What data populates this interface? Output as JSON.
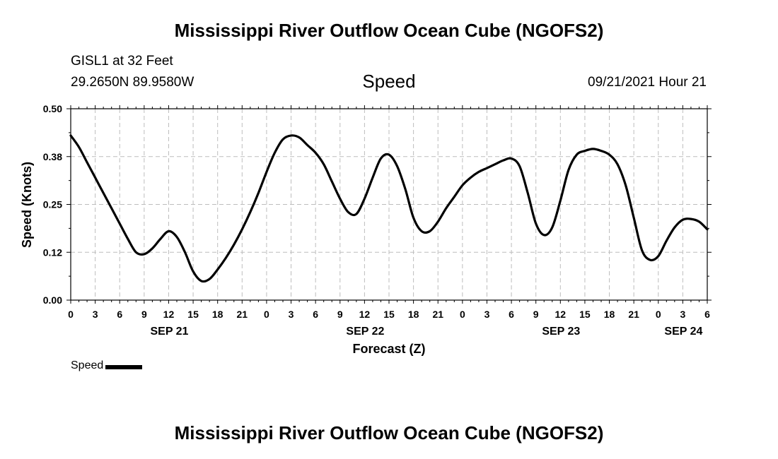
{
  "page": {
    "title": "Mississippi River Outflow Ocean Cube (NGOFS2)",
    "footer_title": "Mississippi River Outflow Ocean Cube (NGOFS2)",
    "station_name": "GISL1 at 32 Feet",
    "station_coords": "29.2650N  89.9580W",
    "chart_heading": "Speed",
    "timestamp": "09/21/2021 Hour 21"
  },
  "chart_data": {
    "type": "line",
    "title": "Speed",
    "xlabel": "Forecast (Z)",
    "ylabel": "Speed (Knots)",
    "ylim": [
      0,
      0.5
    ],
    "yticks": [
      0.0,
      0.125,
      0.25,
      0.375,
      0.5
    ],
    "ytick_labels": [
      "0.00",
      "0.12",
      "0.25",
      "0.38",
      "0.50"
    ],
    "xlim": [
      0,
      78
    ],
    "xtick_hours": [
      0,
      3,
      6,
      9,
      12,
      15,
      18,
      21,
      24,
      27,
      30,
      33,
      36,
      39,
      42,
      45,
      48,
      51,
      54,
      57,
      60,
      63,
      66,
      69,
      72,
      75,
      78
    ],
    "xtick_labels": [
      "0",
      "3",
      "6",
      "9",
      "12",
      "15",
      "18",
      "21",
      "0",
      "3",
      "6",
      "9",
      "12",
      "15",
      "18",
      "21",
      "0",
      "3",
      "6",
      "9",
      "12",
      "15",
      "18",
      "21",
      "0",
      "3",
      "6"
    ],
    "date_labels": [
      {
        "hour": 12,
        "label": "SEP 21"
      },
      {
        "hour": 36,
        "label": "SEP 22"
      },
      {
        "hour": 60,
        "label": "SEP 23"
      },
      {
        "hour": 75,
        "label": "SEP 24"
      }
    ],
    "grid": true,
    "series": [
      {
        "name": "Speed",
        "x": [
          0,
          1,
          2,
          3,
          4,
          5,
          6,
          7,
          8,
          9,
          10,
          11,
          12,
          13,
          14,
          15,
          16,
          17,
          18,
          19,
          20,
          21,
          22,
          23,
          24,
          25,
          26,
          27,
          28,
          29,
          30,
          31,
          32,
          33,
          34,
          35,
          36,
          37,
          38,
          39,
          40,
          41,
          42,
          43,
          44,
          45,
          46,
          47,
          48,
          49,
          50,
          51,
          52,
          53,
          54,
          55,
          56,
          57,
          58,
          59,
          60,
          61,
          62,
          63,
          64,
          65,
          66,
          67,
          68,
          69,
          70,
          71,
          72,
          73,
          74,
          75,
          76,
          77,
          78
        ],
        "values": [
          0.43,
          0.4,
          0.36,
          0.32,
          0.28,
          0.24,
          0.2,
          0.16,
          0.125,
          0.12,
          0.135,
          0.16,
          0.18,
          0.165,
          0.125,
          0.075,
          0.05,
          0.055,
          0.08,
          0.11,
          0.145,
          0.185,
          0.23,
          0.28,
          0.335,
          0.385,
          0.42,
          0.43,
          0.425,
          0.405,
          0.385,
          0.355,
          0.31,
          0.265,
          0.23,
          0.225,
          0.265,
          0.32,
          0.37,
          0.38,
          0.35,
          0.29,
          0.215,
          0.18,
          0.18,
          0.205,
          0.24,
          0.27,
          0.3,
          0.32,
          0.335,
          0.345,
          0.355,
          0.365,
          0.37,
          0.35,
          0.28,
          0.2,
          0.17,
          0.19,
          0.26,
          0.34,
          0.38,
          0.39,
          0.395,
          0.39,
          0.38,
          0.355,
          0.3,
          0.215,
          0.13,
          0.105,
          0.115,
          0.155,
          0.19,
          0.21,
          0.212,
          0.205,
          0.185
        ]
      }
    ],
    "legend": {
      "label": "Speed",
      "position": "bottom-left"
    }
  }
}
